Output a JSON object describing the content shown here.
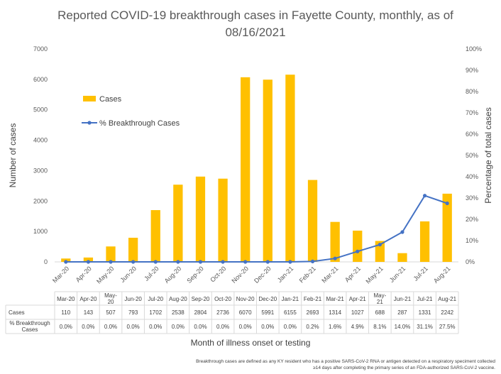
{
  "chart_data": {
    "type": "bar",
    "title": "Reported COVID-19 breakthrough cases in Fayette County, monthly, as of 08/16/2021",
    "xlabel": "Month of illness onset or testing",
    "ylabel": "Number of cases",
    "y2label": "Percentage of total cases",
    "ylim": [
      0,
      7000
    ],
    "y2lim": [
      0,
      100
    ],
    "yticks": [
      "0",
      "1000",
      "2000",
      "3000",
      "4000",
      "5000",
      "6000",
      "7000"
    ],
    "y2ticks": [
      "0%",
      "10%",
      "20%",
      "30%",
      "40%",
      "50%",
      "60%",
      "70%",
      "80%",
      "90%",
      "100%"
    ],
    "categories": [
      "Mar-20",
      "Apr-20",
      "May-20",
      "Jun-20",
      "Jul-20",
      "Aug-20",
      "Sep-20",
      "Oct-20",
      "Nov-20",
      "Dec-20",
      "Jan-21",
      "Feb-21",
      "Mar-21",
      "Apr-21",
      "May-21",
      "Jun-21",
      "Jul-21",
      "Aug-21"
    ],
    "series": [
      {
        "name": "Cases",
        "type": "bar",
        "color": "#FFC000",
        "values": [
          110,
          143,
          507,
          793,
          1702,
          2538,
          2804,
          2736,
          6070,
          5991,
          6155,
          2693,
          1314,
          1027,
          688,
          287,
          1331,
          2242
        ]
      },
      {
        "name": "% Breakthrough Cases",
        "type": "line",
        "axis": "secondary",
        "color": "#4472C4",
        "values": [
          0.0,
          0.0,
          0.0,
          0.0,
          0.0,
          0.0,
          0.0,
          0.0,
          0.0,
          0.0,
          0.0,
          0.2,
          1.6,
          4.9,
          8.1,
          14.0,
          31.1,
          27.5
        ],
        "labels": [
          "0.0%",
          "0.0%",
          "0.0%",
          "0.0%",
          "0.0%",
          "0.0%",
          "0.0%",
          "0.0%",
          "0.0%",
          "0.0%",
          "0.0%",
          "0.2%",
          "1.6%",
          "4.9%",
          "8.1%",
          "14.0%",
          "31.1%",
          "27.5%"
        ]
      }
    ],
    "legend_position": "top-left",
    "grid": false,
    "table": {
      "header": [
        "Mar-20",
        "Apr-20",
        "May-20",
        "Jun-20",
        "Jul-20",
        "Aug-20",
        "Sep-20",
        "Oct-20",
        "Nov-20",
        "Dec-20",
        "Jan-21",
        "Feb-21",
        "Mar-21",
        "Apr-21",
        "May-21",
        "Jun-21",
        "Jul-21",
        "Aug-21"
      ],
      "row_labels": [
        "Cases",
        "% Breakthrough Cases"
      ]
    }
  },
  "footnote": "Breakthrough cases are defined as any KY resident who has a positive SARS-CoV-2 RNA or antigen detected on a respiratory speciment collected ≥14 days after completing the primary series of an FDA-authorized SARS-CoV-2 vaccine."
}
